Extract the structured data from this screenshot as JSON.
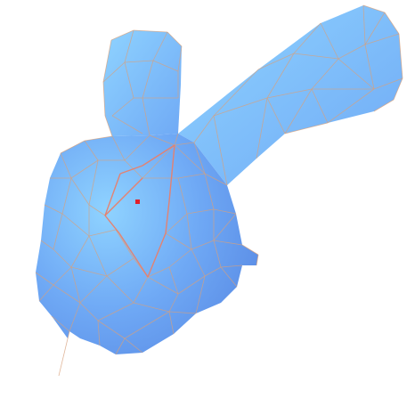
{
  "viewport": {
    "background": "#ffffff",
    "mesh_fill_light": "#8fd3ff",
    "mesh_fill_base": "#6fa9f5",
    "mesh_fill_shadow": "#5b8de6",
    "wire_color": "#d9a07a",
    "highlight_wire_color": "#e8806b",
    "selected_vertex_color": "#e0202a"
  },
  "model": {
    "shape": "low-poly bunny mesh",
    "shading": "smooth",
    "wireframe": true,
    "selected_vertex_count": 1
  }
}
